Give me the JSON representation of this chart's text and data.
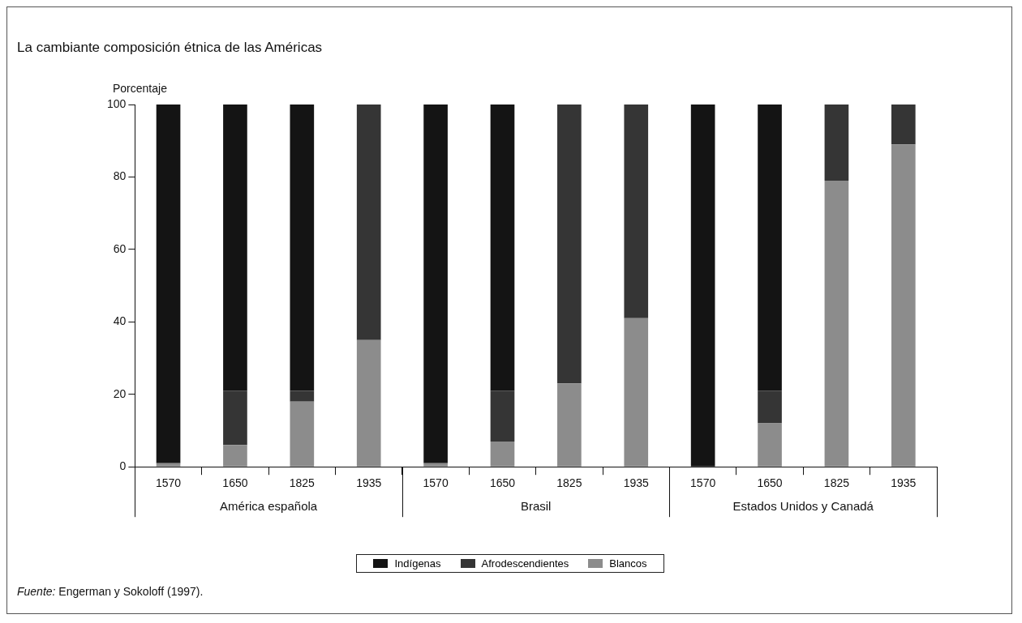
{
  "chart_data": {
    "type": "bar",
    "stacked": true,
    "title": "La cambiante composición étnica de las Américas",
    "ylabel": "Porcentaje",
    "categories": [
      "1570",
      "1650",
      "1825",
      "1935",
      "1570",
      "1650",
      "1825",
      "1935",
      "1570",
      "1650",
      "1825",
      "1935"
    ],
    "series": [
      {
        "name": "Blancos",
        "color": "#8c8c8c",
        "values": [
          1,
          6,
          18,
          35,
          1,
          7,
          23,
          41,
          0,
          12,
          79,
          89
        ]
      },
      {
        "name": "Afrodescendientes",
        "color": "#353535",
        "values": [
          0,
          15,
          3,
          65,
          0,
          14,
          77,
          59,
          0,
          9,
          21,
          11
        ]
      },
      {
        "name": "Indígenas",
        "color": "#141414",
        "values": [
          99,
          79,
          79,
          0,
          99,
          79,
          0,
          0,
          100,
          79,
          0,
          0
        ]
      }
    ],
    "ylim": [
      0,
      100
    ],
    "yticks": [
      0,
      20,
      40,
      60,
      80,
      100
    ],
    "grid": false,
    "legend": "bottom",
    "annotations": [
      "América española",
      "Brasil",
      "Estados Unidos y Canadá",
      "Fuente: Engerman y Sokoloff (1997)."
    ]
  }
}
